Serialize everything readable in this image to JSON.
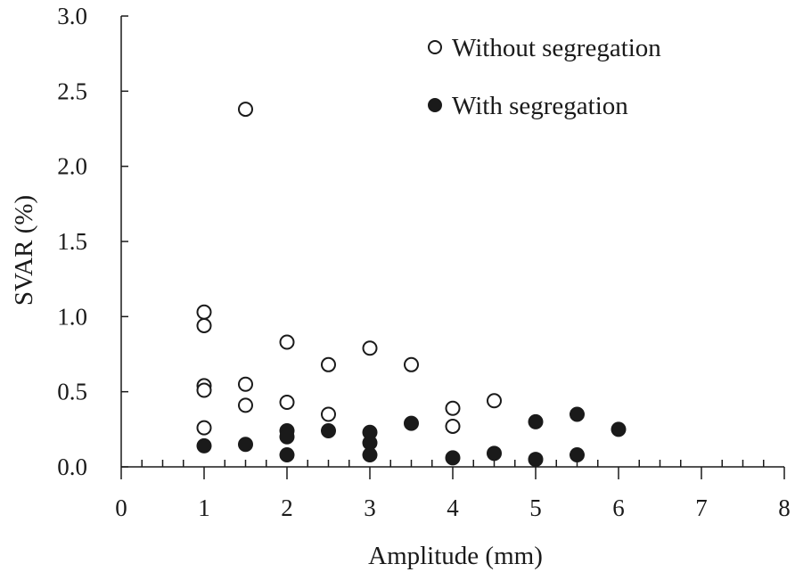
{
  "chart_data": {
    "type": "scatter",
    "xlabel": "Amplitude (mm)",
    "ylabel": "SVAR (%)",
    "xlim": [
      0,
      8
    ],
    "ylim": [
      0.0,
      3.0
    ],
    "x_major_step": 1,
    "x_minor_step": 0.25,
    "y_major_step": 0.5,
    "x_tick_labels": [
      "0",
      "1",
      "2",
      "3",
      "4",
      "5",
      "6",
      "7",
      "8"
    ],
    "y_tick_labels": [
      "0.0",
      "0.5",
      "1.0",
      "1.5",
      "2.0",
      "2.5",
      "3.0"
    ],
    "grid": false,
    "legend_position": "top-right",
    "series": [
      {
        "name": "Without segregation",
        "marker": "open-circle",
        "points": [
          [
            1,
            1.03
          ],
          [
            1,
            0.94
          ],
          [
            1,
            0.54
          ],
          [
            1,
            0.51
          ],
          [
            1,
            0.26
          ],
          [
            1.5,
            2.38
          ],
          [
            1.5,
            0.55
          ],
          [
            1.5,
            0.41
          ],
          [
            2,
            0.83
          ],
          [
            2,
            0.43
          ],
          [
            2.5,
            0.68
          ],
          [
            2.5,
            0.35
          ],
          [
            3,
            0.79
          ],
          [
            3.5,
            0.68
          ],
          [
            4,
            0.39
          ],
          [
            4,
            0.27
          ],
          [
            4.5,
            0.44
          ]
        ]
      },
      {
        "name": "With segregation",
        "marker": "filled-circle",
        "points": [
          [
            1,
            0.14
          ],
          [
            1.5,
            0.15
          ],
          [
            2,
            0.24
          ],
          [
            2,
            0.2
          ],
          [
            2,
            0.08
          ],
          [
            2.5,
            0.24
          ],
          [
            3,
            0.23
          ],
          [
            3,
            0.16
          ],
          [
            3,
            0.08
          ],
          [
            3.5,
            0.29
          ],
          [
            4,
            0.06
          ],
          [
            4.5,
            0.09
          ],
          [
            5,
            0.3
          ],
          [
            5,
            0.05
          ],
          [
            5.5,
            0.35
          ],
          [
            5.5,
            0.08
          ],
          [
            6,
            0.25
          ]
        ]
      }
    ]
  },
  "colors": {
    "ink": "#1a1a1a",
    "background": "#ffffff"
  }
}
